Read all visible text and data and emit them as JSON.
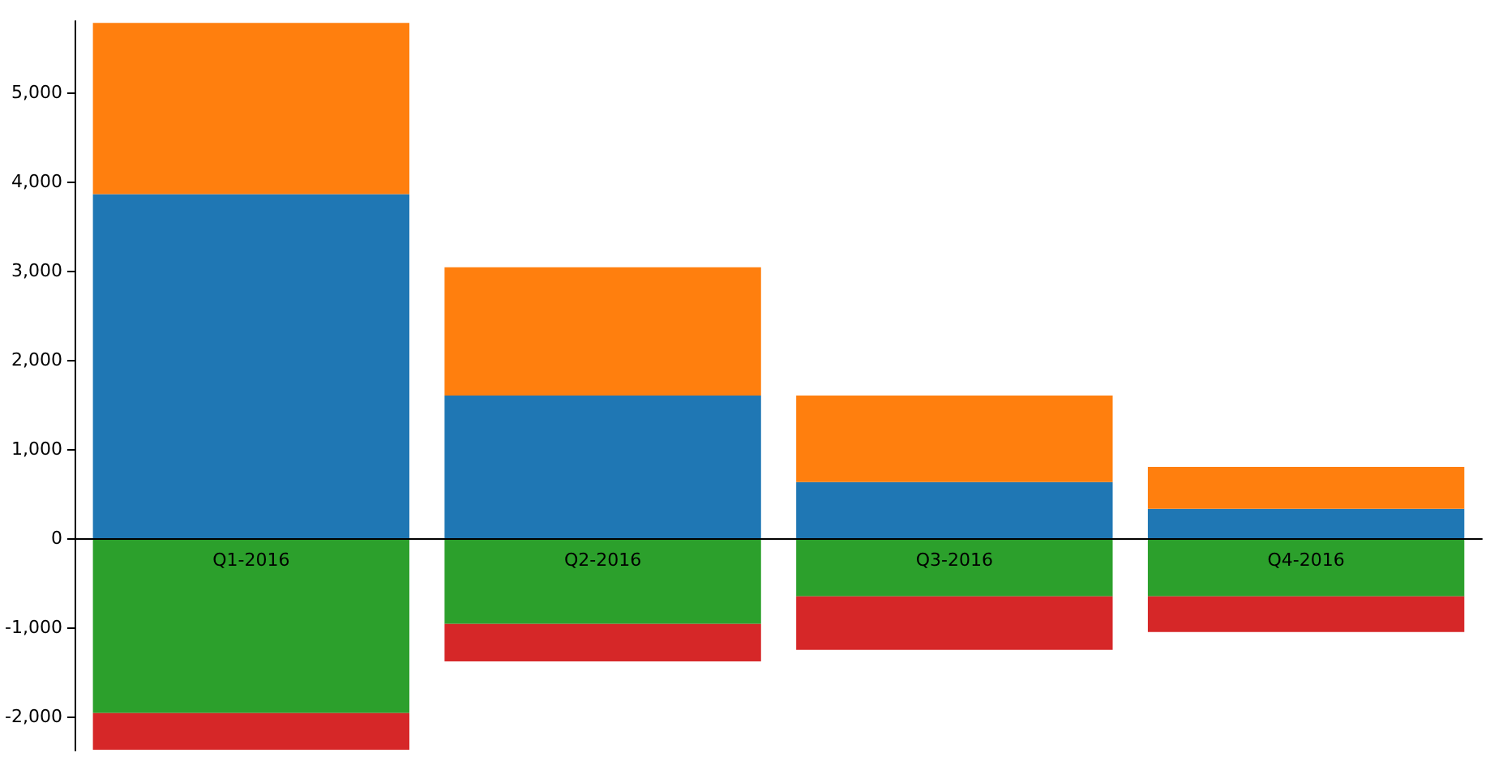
{
  "chart_data": {
    "type": "bar",
    "stacked": true,
    "categories": [
      "Q1-2016",
      "Q2-2016",
      "Q3-2016",
      "Q4-2016"
    ],
    "series": [
      {
        "color": "#1f77b4",
        "values": [
          3860,
          1600,
          630,
          330
        ]
      },
      {
        "color": "#ff7f0e",
        "values": [
          1920,
          1440,
          970,
          470
        ]
      },
      {
        "color": "#2ca02c",
        "values": [
          -1960,
          -960,
          -650,
          -650
        ]
      },
      {
        "color": "#d62728",
        "values": [
          -410,
          -420,
          -600,
          -400
        ]
      }
    ],
    "ylim": [
      -2380,
      5800
    ],
    "yticks": [
      {
        "value": -2000,
        "label": "-2,000"
      },
      {
        "value": -1000,
        "label": "-1,000"
      },
      0,
      {
        "value": 1000,
        "label": "1,000"
      },
      {
        "value": 2000,
        "label": "2,000"
      },
      {
        "value": 3000,
        "label": "3,000"
      },
      {
        "value": 4000,
        "label": "4,000"
      },
      {
        "value": 5000,
        "label": "5,000"
      }
    ]
  }
}
